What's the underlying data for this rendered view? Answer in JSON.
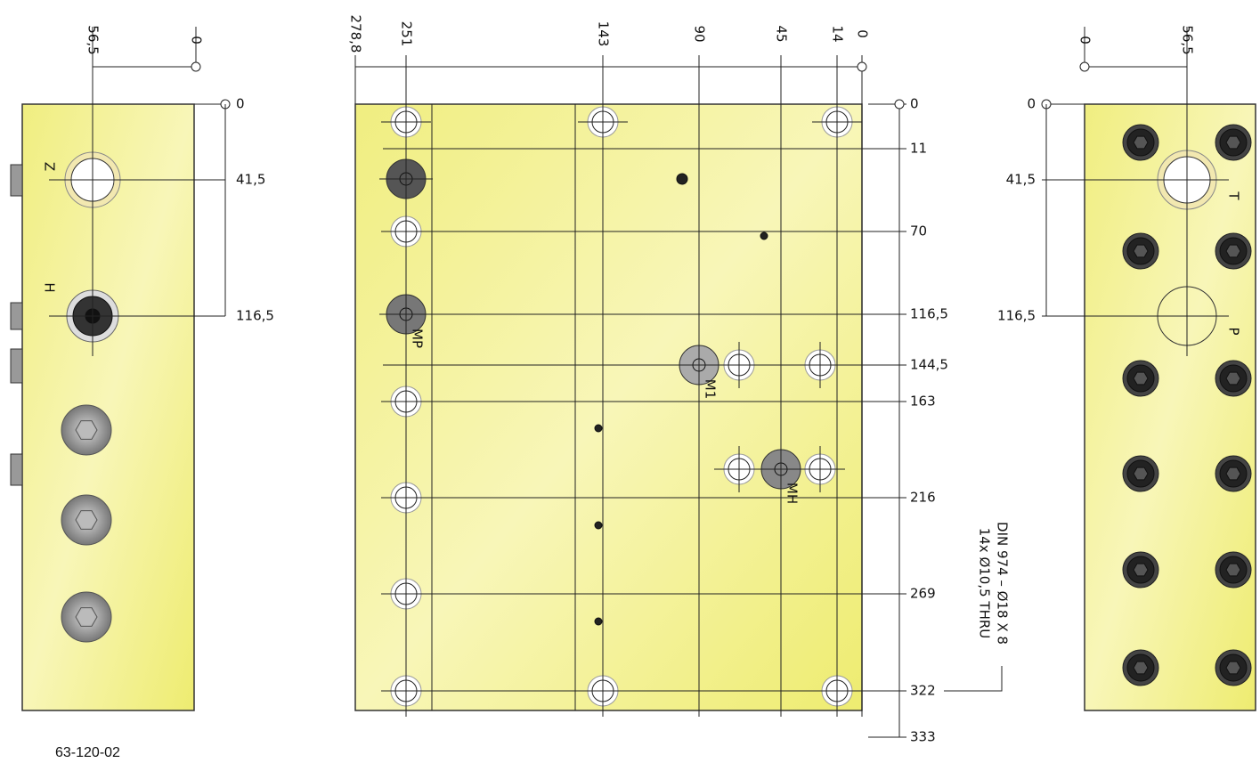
{
  "left_view": {
    "top_dims": [
      "56,5",
      "0"
    ],
    "side_dims": [
      "0",
      "41,5",
      "116,5"
    ],
    "port_labels": [
      "Z",
      "H"
    ]
  },
  "main_view": {
    "top_dims": [
      "278,8",
      "251",
      "143",
      "90",
      "45",
      "14",
      "0"
    ],
    "side_dims": [
      "0",
      "11",
      "70",
      "116,5",
      "144,5",
      "163",
      "216",
      "269",
      "322",
      "333"
    ],
    "port_labels": [
      "MP",
      "M1",
      "MH"
    ],
    "note": [
      "14x Ø10,5 THRU",
      "DIN 974 – Ø18 X 8"
    ]
  },
  "right_view": {
    "top_dims": [
      "0",
      "56,5"
    ],
    "side_dims": [
      "0",
      "41,5",
      "116,5"
    ],
    "port_labels": [
      "T",
      "P"
    ]
  },
  "drawing_number": "63-120-02"
}
